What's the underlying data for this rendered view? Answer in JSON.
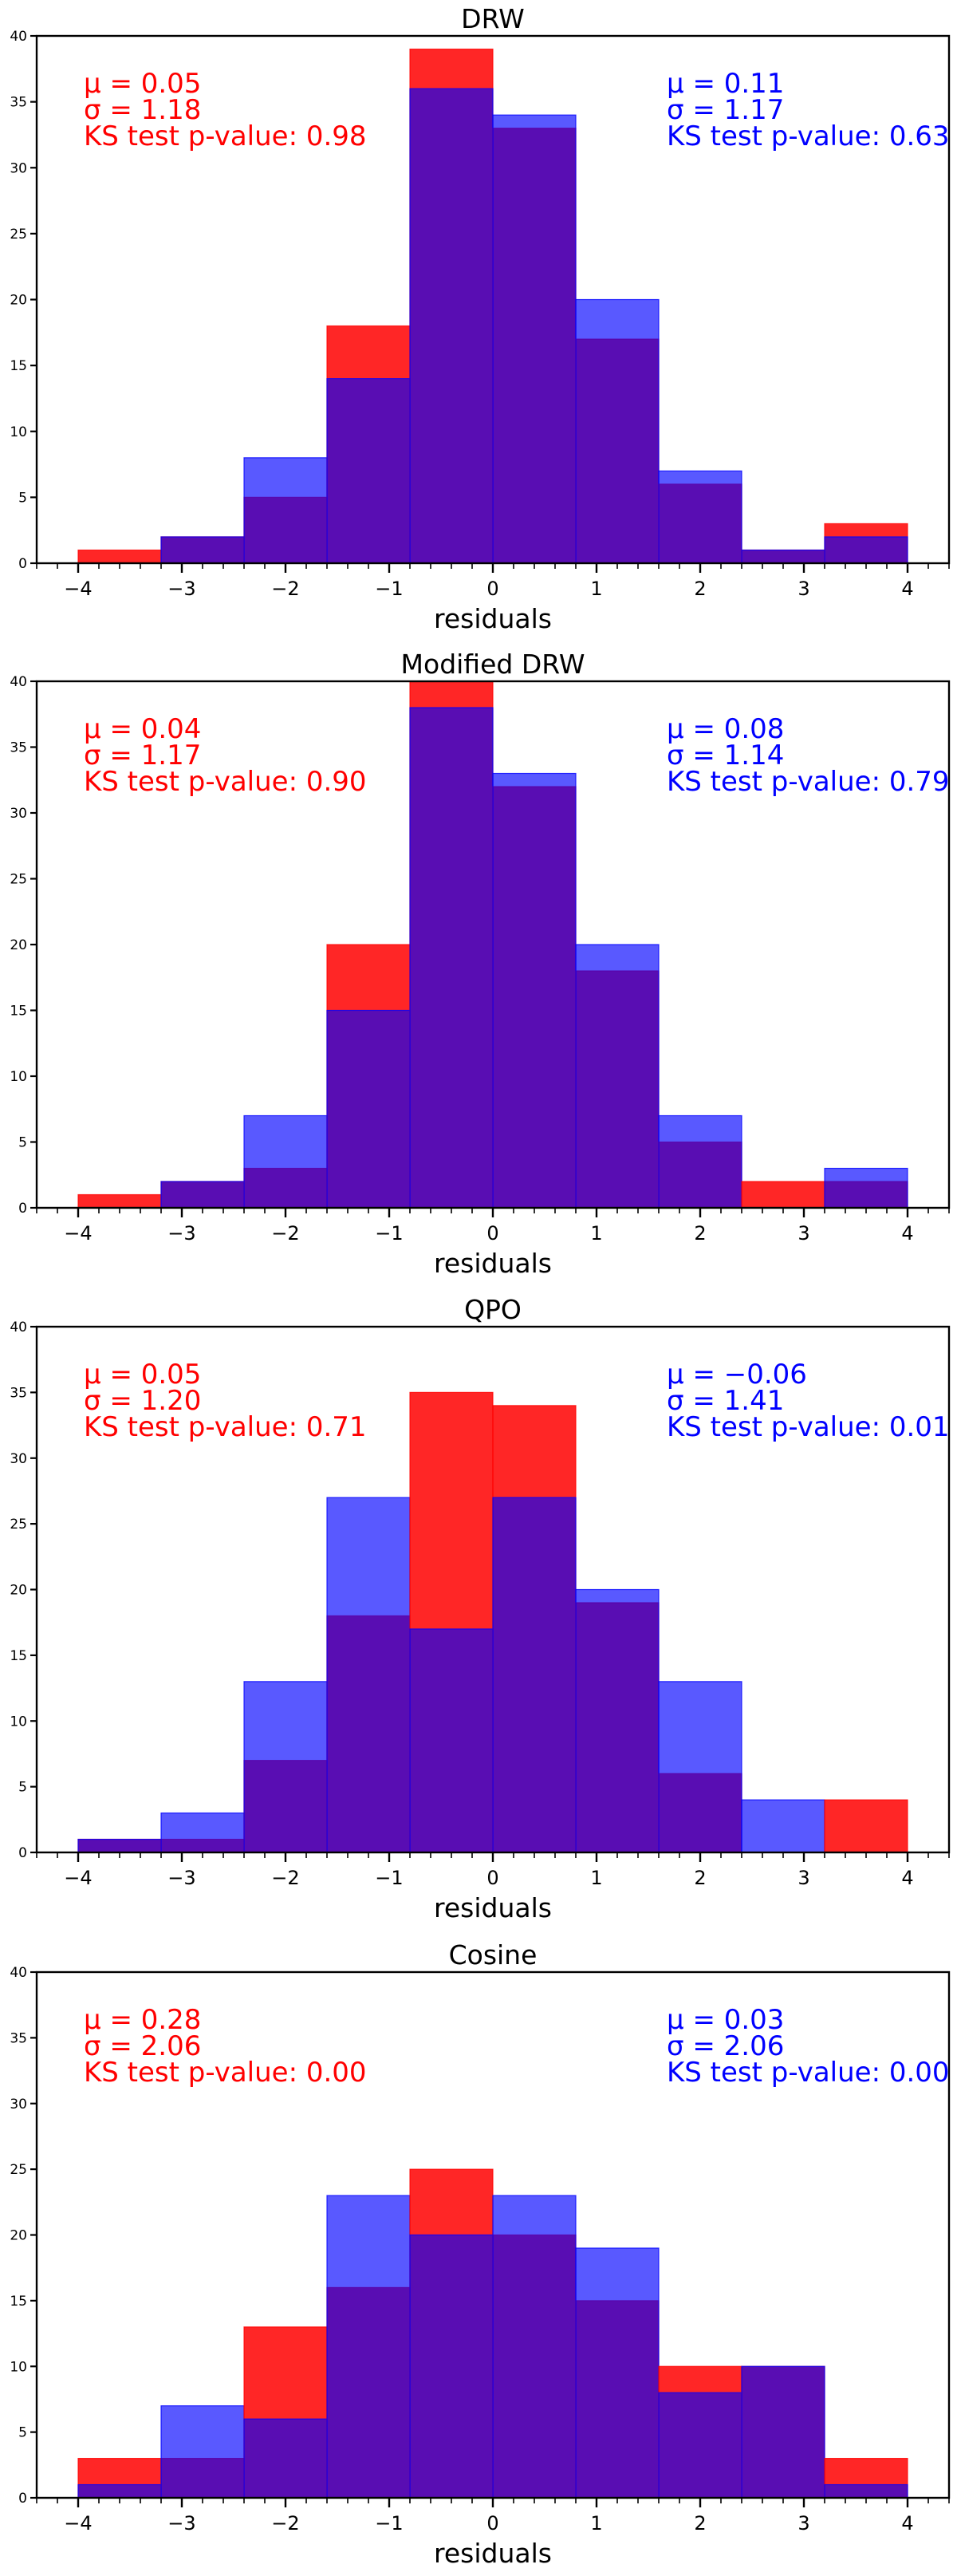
{
  "colors": {
    "red_series": "#ff0000",
    "blue_series": "#0000ff",
    "overlap": "#5a10b0",
    "axis": "#000000"
  },
  "chart_data": [
    {
      "type": "bar",
      "title": "DRW",
      "xlabel": "residuals",
      "ylabel": "",
      "bin_edges": [
        -4.0,
        -3.2,
        -2.4,
        -1.6,
        -0.8,
        0.0,
        0.8,
        1.6,
        2.4,
        3.2,
        4.0
      ],
      "xlim": [
        -4.4,
        4.4
      ],
      "ylim": [
        0,
        40
      ],
      "xticks": [
        -4,
        -3,
        -2,
        -1,
        0,
        1,
        2,
        3,
        4
      ],
      "yticks": [
        0,
        5,
        10,
        15,
        20,
        25,
        30,
        35,
        40
      ],
      "series": [
        {
          "name": "red",
          "color": "#ff0000",
          "values": [
            1,
            2,
            5,
            18,
            39,
            33,
            17,
            6,
            1,
            3
          ],
          "stats": {
            "mu_label": "μ = 0.05",
            "sigma_label": "σ = 1.18",
            "ks_label": "KS test p-value: 0.98"
          }
        },
        {
          "name": "blue",
          "color": "#0000ff",
          "values": [
            0,
            2,
            8,
            14,
            36,
            34,
            20,
            7,
            1,
            2
          ],
          "stats": {
            "mu_label": "μ = 0.11",
            "sigma_label": "σ = 1.17",
            "ks_label": "KS test p-value: 0.63"
          }
        }
      ]
    },
    {
      "type": "bar",
      "title": "Modified DRW",
      "xlabel": "residuals",
      "ylabel": "",
      "bin_edges": [
        -4.0,
        -3.2,
        -2.4,
        -1.6,
        -0.8,
        0.0,
        0.8,
        1.6,
        2.4,
        3.2,
        4.0
      ],
      "xlim": [
        -4.4,
        4.4
      ],
      "ylim": [
        0,
        40
      ],
      "xticks": [
        -4,
        -3,
        -2,
        -1,
        0,
        1,
        2,
        3,
        4
      ],
      "yticks": [
        0,
        5,
        10,
        15,
        20,
        25,
        30,
        35,
        40
      ],
      "series": [
        {
          "name": "red",
          "color": "#ff0000",
          "values": [
            1,
            2,
            3,
            20,
            40,
            32,
            18,
            5,
            2,
            2
          ],
          "stats": {
            "mu_label": "μ = 0.04",
            "sigma_label": "σ = 1.17",
            "ks_label": "KS test p-value: 0.90"
          }
        },
        {
          "name": "blue",
          "color": "#0000ff",
          "values": [
            0,
            2,
            7,
            15,
            38,
            33,
            20,
            7,
            0,
            3
          ],
          "stats": {
            "mu_label": "μ = 0.08",
            "sigma_label": "σ = 1.14",
            "ks_label": "KS test p-value: 0.79"
          }
        }
      ]
    },
    {
      "type": "bar",
      "title": "QPO",
      "xlabel": "residuals",
      "ylabel": "",
      "bin_edges": [
        -4.0,
        -3.2,
        -2.4,
        -1.6,
        -0.8,
        0.0,
        0.8,
        1.6,
        2.4,
        3.2,
        4.0
      ],
      "xlim": [
        -4.4,
        4.4
      ],
      "ylim": [
        0,
        40
      ],
      "xticks": [
        -4,
        -3,
        -2,
        -1,
        0,
        1,
        2,
        3,
        4
      ],
      "yticks": [
        0,
        5,
        10,
        15,
        20,
        25,
        30,
        35,
        40
      ],
      "series": [
        {
          "name": "red",
          "color": "#ff0000",
          "values": [
            1,
            1,
            7,
            18,
            35,
            34,
            19,
            6,
            0,
            4
          ],
          "stats": {
            "mu_label": "μ = 0.05",
            "sigma_label": "σ = 1.20",
            "ks_label": "KS test p-value: 0.71"
          }
        },
        {
          "name": "blue",
          "color": "#0000ff",
          "values": [
            1,
            3,
            13,
            27,
            17,
            27,
            20,
            13,
            4,
            0
          ],
          "stats": {
            "mu_label": "μ = −0.06",
            "sigma_label": "σ = 1.41",
            "ks_label": "KS test p-value: 0.01"
          }
        }
      ]
    },
    {
      "type": "bar",
      "title": "Cosine",
      "xlabel": "residuals",
      "ylabel": "",
      "bin_edges": [
        -4.0,
        -3.2,
        -2.4,
        -1.6,
        -0.8,
        0.0,
        0.8,
        1.6,
        2.4,
        3.2,
        4.0
      ],
      "xlim": [
        -4.4,
        4.4
      ],
      "ylim": [
        0,
        40
      ],
      "xticks": [
        -4,
        -3,
        -2,
        -1,
        0,
        1,
        2,
        3,
        4
      ],
      "yticks": [
        0,
        5,
        10,
        15,
        20,
        25,
        30,
        35,
        40
      ],
      "series": [
        {
          "name": "red",
          "color": "#ff0000",
          "values": [
            3,
            3,
            13,
            16,
            25,
            20,
            15,
            10,
            10,
            3
          ],
          "stats": {
            "mu_label": "μ = 0.28",
            "sigma_label": "σ = 2.06",
            "ks_label": "KS test p-value: 0.00"
          }
        },
        {
          "name": "blue",
          "color": "#0000ff",
          "values": [
            1,
            7,
            6,
            23,
            20,
            23,
            19,
            8,
            10,
            1
          ],
          "stats": {
            "mu_label": "μ = 0.03",
            "sigma_label": "σ = 2.06",
            "ks_label": "KS test p-value: 0.00"
          }
        }
      ]
    }
  ]
}
